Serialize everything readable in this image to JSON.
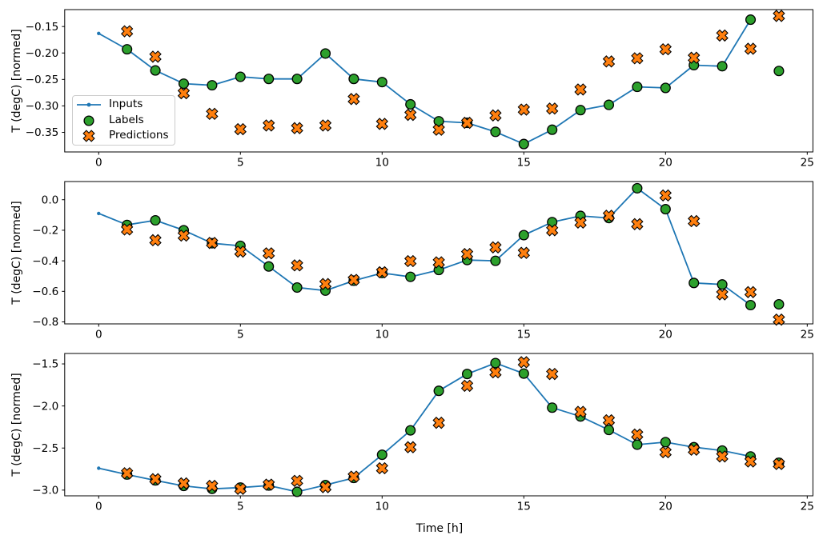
{
  "figure": {
    "xlabel": "Time [h]",
    "ylabel": "T (degC) [normed]",
    "background": "#ffffff",
    "colors": {
      "inputs": "#1f77b4",
      "labels": "#2ca02c",
      "predictions": "#ff7f0e",
      "marker_edge": "#000000",
      "axis": "#000000",
      "legend_border": "#cccccc"
    },
    "legend": {
      "position": "upper-left-of-first-subplot",
      "entries": [
        {
          "label": "Inputs",
          "style": "line-dot",
          "icon": "line-with-dot-icon"
        },
        {
          "label": "Labels",
          "style": "scatter-circle",
          "icon": "filled-circle-icon"
        },
        {
          "label": "Predictions",
          "style": "scatter-x",
          "icon": "x-marker-icon"
        }
      ]
    }
  },
  "chart_data": [
    {
      "type": "line",
      "name": "subplot-top",
      "ylabel": "T (degC) [normed]",
      "xlabel": "",
      "grid": false,
      "xlim": [
        -1.2,
        25.2
      ],
      "ylim": [
        -0.387,
        -0.118
      ],
      "xticks": [
        {
          "value": 0,
          "label": "0"
        },
        {
          "value": 5,
          "label": "5"
        },
        {
          "value": 10,
          "label": "10"
        },
        {
          "value": 15,
          "label": "15"
        },
        {
          "value": 20,
          "label": "20"
        },
        {
          "value": 25,
          "label": "25"
        }
      ],
      "yticks": [
        {
          "value": -0.15,
          "label": "−0.15"
        },
        {
          "value": -0.2,
          "label": "−0.20"
        },
        {
          "value": -0.25,
          "label": "−0.25"
        },
        {
          "value": -0.3,
          "label": "−0.30"
        },
        {
          "value": -0.35,
          "label": "−0.35"
        }
      ],
      "series": [
        {
          "name": "Inputs",
          "style": "line-dot",
          "x": [
            0,
            1,
            2,
            3,
            4,
            5,
            6,
            7,
            8,
            9,
            10,
            11,
            12,
            13,
            14,
            15,
            16,
            17,
            18,
            19,
            20,
            21,
            22,
            23
          ],
          "y": [
            -0.163,
            -0.193,
            -0.233,
            -0.258,
            -0.261,
            -0.245,
            -0.249,
            -0.249,
            -0.201,
            -0.249,
            -0.255,
            -0.297,
            -0.329,
            -0.332,
            -0.349,
            -0.372,
            -0.345,
            -0.308,
            -0.298,
            -0.264,
            -0.266,
            -0.223,
            -0.225,
            -0.137
          ]
        },
        {
          "name": "Labels",
          "style": "scatter-circle",
          "x": [
            1,
            2,
            3,
            4,
            5,
            6,
            7,
            8,
            9,
            10,
            11,
            12,
            13,
            14,
            15,
            16,
            17,
            18,
            19,
            20,
            21,
            22,
            23,
            24
          ],
          "y": [
            -0.193,
            -0.233,
            -0.258,
            -0.261,
            -0.245,
            -0.249,
            -0.249,
            -0.201,
            -0.249,
            -0.255,
            -0.297,
            -0.329,
            -0.332,
            -0.349,
            -0.372,
            -0.345,
            -0.308,
            -0.298,
            -0.264,
            -0.266,
            -0.223,
            -0.225,
            -0.137,
            -0.234
          ]
        },
        {
          "name": "Predictions",
          "style": "scatter-x",
          "x": [
            1,
            2,
            3,
            4,
            5,
            6,
            7,
            8,
            9,
            10,
            11,
            12,
            13,
            14,
            15,
            16,
            17,
            18,
            19,
            20,
            21,
            22,
            23,
            24
          ],
          "y": [
            -0.159,
            -0.207,
            -0.276,
            -0.315,
            -0.344,
            -0.337,
            -0.342,
            -0.337,
            -0.287,
            -0.334,
            -0.317,
            -0.345,
            -0.332,
            -0.318,
            -0.307,
            -0.305,
            -0.269,
            -0.216,
            -0.21,
            -0.193,
            -0.209,
            -0.167,
            -0.192,
            -0.13
          ]
        }
      ]
    },
    {
      "type": "line",
      "name": "subplot-middle",
      "ylabel": "T (degC) [normed]",
      "xlabel": "",
      "grid": false,
      "xlim": [
        -1.2,
        25.2
      ],
      "ylim": [
        -0.813,
        0.119
      ],
      "xticks": [
        {
          "value": 0,
          "label": "0"
        },
        {
          "value": 5,
          "label": "5"
        },
        {
          "value": 10,
          "label": "10"
        },
        {
          "value": 15,
          "label": "15"
        },
        {
          "value": 20,
          "label": "20"
        },
        {
          "value": 25,
          "label": "25"
        }
      ],
      "yticks": [
        {
          "value": 0.0,
          "label": "0.0"
        },
        {
          "value": -0.2,
          "label": "−0.2"
        },
        {
          "value": -0.4,
          "label": "−0.4"
        },
        {
          "value": -0.6,
          "label": "−0.6"
        },
        {
          "value": -0.8,
          "label": "−0.8"
        }
      ],
      "series": [
        {
          "name": "Inputs",
          "style": "line-dot",
          "x": [
            0,
            1,
            2,
            3,
            4,
            5,
            6,
            7,
            8,
            9,
            10,
            11,
            12,
            13,
            14,
            15,
            16,
            17,
            18,
            19,
            20,
            21,
            22,
            23
          ],
          "y": [
            -0.09,
            -0.165,
            -0.135,
            -0.2,
            -0.285,
            -0.302,
            -0.437,
            -0.575,
            -0.595,
            -0.53,
            -0.48,
            -0.505,
            -0.46,
            -0.395,
            -0.4,
            -0.232,
            -0.147,
            -0.106,
            -0.12,
            0.075,
            -0.062,
            -0.545,
            -0.555,
            -0.69
          ]
        },
        {
          "name": "Labels",
          "style": "scatter-circle",
          "x": [
            1,
            2,
            3,
            4,
            5,
            6,
            7,
            8,
            9,
            10,
            11,
            12,
            13,
            14,
            15,
            16,
            17,
            18,
            19,
            20,
            21,
            22,
            23,
            24
          ],
          "y": [
            -0.165,
            -0.135,
            -0.2,
            -0.285,
            -0.302,
            -0.437,
            -0.575,
            -0.595,
            -0.53,
            -0.48,
            -0.505,
            -0.46,
            -0.395,
            -0.4,
            -0.232,
            -0.147,
            -0.106,
            -0.12,
            0.075,
            -0.062,
            -0.545,
            -0.555,
            -0.69,
            -0.685
          ]
        },
        {
          "name": "Predictions",
          "style": "scatter-x",
          "x": [
            1,
            2,
            3,
            4,
            5,
            6,
            7,
            8,
            9,
            10,
            11,
            12,
            13,
            14,
            15,
            16,
            17,
            18,
            19,
            20,
            21,
            22,
            23,
            24
          ],
          "y": [
            -0.195,
            -0.265,
            -0.235,
            -0.283,
            -0.34,
            -0.351,
            -0.43,
            -0.552,
            -0.525,
            -0.475,
            -0.402,
            -0.41,
            -0.356,
            -0.312,
            -0.348,
            -0.2,
            -0.15,
            -0.105,
            -0.16,
            0.028,
            -0.14,
            -0.62,
            -0.605,
            -0.785
          ]
        }
      ]
    },
    {
      "type": "line",
      "name": "subplot-bottom",
      "ylabel": "T (degC) [normed]",
      "xlabel": "Time [h]",
      "grid": false,
      "xlim": [
        -1.2,
        25.2
      ],
      "ylim": [
        -3.068,
        -1.376
      ],
      "xticks": [
        {
          "value": 0,
          "label": "0"
        },
        {
          "value": 5,
          "label": "5"
        },
        {
          "value": 10,
          "label": "10"
        },
        {
          "value": 15,
          "label": "15"
        },
        {
          "value": 20,
          "label": "20"
        },
        {
          "value": 25,
          "label": "25"
        }
      ],
      "yticks": [
        {
          "value": -1.5,
          "label": "−1.5"
        },
        {
          "value": -2.0,
          "label": "−2.0"
        },
        {
          "value": -2.5,
          "label": "−2.5"
        },
        {
          "value": -3.0,
          "label": "−3.0"
        }
      ],
      "series": [
        {
          "name": "Inputs",
          "style": "line-dot",
          "x": [
            0,
            1,
            2,
            3,
            4,
            5,
            6,
            7,
            8,
            9,
            10,
            11,
            12,
            13,
            14,
            15,
            16,
            17,
            18,
            19,
            20,
            21,
            22,
            23
          ],
          "y": [
            -2.74,
            -2.815,
            -2.885,
            -2.95,
            -2.985,
            -2.97,
            -2.945,
            -3.02,
            -2.94,
            -2.855,
            -2.58,
            -2.29,
            -1.82,
            -1.62,
            -1.49,
            -1.615,
            -2.02,
            -2.125,
            -2.285,
            -2.46,
            -2.43,
            -2.49,
            -2.53,
            -2.6
          ]
        },
        {
          "name": "Labels",
          "style": "scatter-circle",
          "x": [
            1,
            2,
            3,
            4,
            5,
            6,
            7,
            8,
            9,
            10,
            11,
            12,
            13,
            14,
            15,
            16,
            17,
            18,
            19,
            20,
            21,
            22,
            23,
            24
          ],
          "y": [
            -2.815,
            -2.885,
            -2.95,
            -2.985,
            -2.97,
            -2.945,
            -3.02,
            -2.94,
            -2.855,
            -2.58,
            -2.29,
            -1.82,
            -1.62,
            -1.49,
            -1.615,
            -2.02,
            -2.125,
            -2.285,
            -2.46,
            -2.43,
            -2.49,
            -2.53,
            -2.6,
            -2.675
          ]
        },
        {
          "name": "Predictions",
          "style": "scatter-x",
          "x": [
            1,
            2,
            3,
            4,
            5,
            6,
            7,
            8,
            9,
            10,
            11,
            12,
            13,
            14,
            15,
            16,
            17,
            18,
            19,
            20,
            21,
            22,
            23,
            24
          ],
          "y": [
            -2.8,
            -2.87,
            -2.92,
            -2.95,
            -2.985,
            -2.935,
            -2.89,
            -2.965,
            -2.84,
            -2.74,
            -2.49,
            -2.2,
            -1.76,
            -1.6,
            -1.48,
            -1.62,
            -2.07,
            -2.17,
            -2.34,
            -2.55,
            -2.52,
            -2.6,
            -2.66,
            -2.69
          ]
        }
      ]
    }
  ]
}
